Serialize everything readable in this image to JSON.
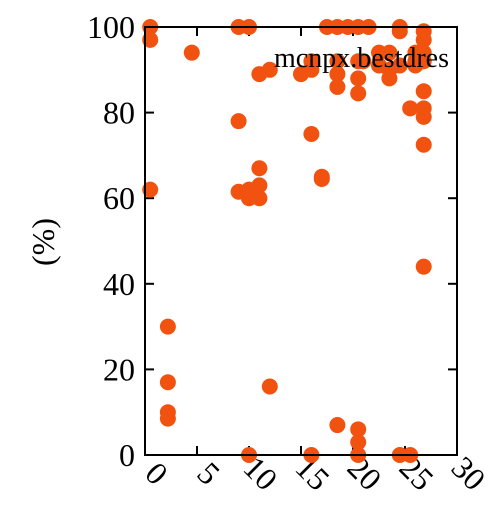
{
  "chart_data": {
    "type": "scatter",
    "title": "",
    "xlabel": "",
    "ylabel": "(%)",
    "xlim": [
      0,
      30
    ],
    "ylim": [
      0,
      100
    ],
    "xticks": [
      "0",
      "5",
      "10",
      "15",
      "20",
      "25",
      "30"
    ],
    "yticks": [
      "0",
      "20",
      "40",
      "60",
      "80",
      "100"
    ],
    "grid": false,
    "legend_position": "top-right",
    "series": [
      {
        "name": "mcnpx.bestdres",
        "color": "#f2520f",
        "points": [
          [
            0.5,
            100
          ],
          [
            0.5,
            97
          ],
          [
            0.5,
            62
          ],
          [
            2.2,
            30
          ],
          [
            2.2,
            17
          ],
          [
            2.2,
            10
          ],
          [
            2.2,
            8.5
          ],
          [
            4.5,
            94
          ],
          [
            9,
            100
          ],
          [
            10,
            100
          ],
          [
            9,
            78
          ],
          [
            9,
            61.5
          ],
          [
            10,
            62
          ],
          [
            10,
            60
          ],
          [
            10.5,
            61
          ],
          [
            11,
            63
          ],
          [
            11,
            60
          ],
          [
            11,
            89
          ],
          [
            12,
            90
          ],
          [
            11,
            67
          ],
          [
            12,
            16
          ],
          [
            10,
            0
          ],
          [
            15,
            89
          ],
          [
            16,
            90
          ],
          [
            16,
            92
          ],
          [
            16,
            75
          ],
          [
            16,
            0
          ],
          [
            17,
            65
          ],
          [
            17,
            64.5
          ],
          [
            17.5,
            100
          ],
          [
            18.5,
            100
          ],
          [
            19.5,
            100
          ],
          [
            20.5,
            100
          ],
          [
            21.5,
            100
          ],
          [
            18.5,
            92
          ],
          [
            18.5,
            89
          ],
          [
            18.5,
            86
          ],
          [
            18.5,
            7
          ],
          [
            20.5,
            92
          ],
          [
            20.5,
            88
          ],
          [
            20.5,
            84.5
          ],
          [
            20.5,
            6
          ],
          [
            20.5,
            3
          ],
          [
            20.5,
            0
          ],
          [
            21,
            92
          ],
          [
            22.5,
            94
          ],
          [
            22.5,
            91
          ],
          [
            23.5,
            94
          ],
          [
            23.5,
            90
          ],
          [
            23.5,
            88
          ],
          [
            24.5,
            91
          ],
          [
            24.5,
            100
          ],
          [
            24.5,
            99
          ],
          [
            24.5,
            0
          ],
          [
            25.5,
            0
          ],
          [
            25.5,
            81
          ],
          [
            26,
            94
          ],
          [
            26,
            92
          ],
          [
            26,
            91
          ],
          [
            26.8,
            99
          ],
          [
            26.8,
            97
          ],
          [
            26.8,
            94
          ],
          [
            26.8,
            92
          ],
          [
            26.8,
            85
          ],
          [
            26.8,
            81
          ],
          [
            26.8,
            79
          ],
          [
            26.8,
            72.5
          ],
          [
            26.8,
            44
          ]
        ]
      }
    ]
  }
}
